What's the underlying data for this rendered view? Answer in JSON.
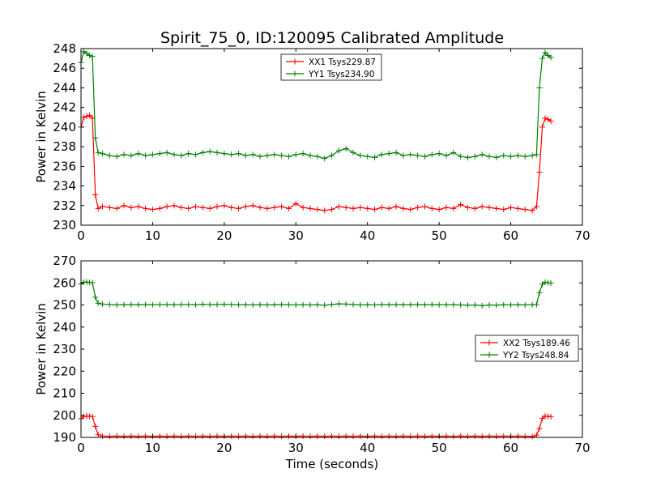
{
  "chart_data": [
    {
      "type": "line",
      "title": "Spirit_75_0, ID:120095 Calibrated Amplitude",
      "xlabel": "",
      "ylabel": "Power in Kelvin",
      "xlim": [
        0,
        70
      ],
      "ylim": [
        230,
        248
      ],
      "xticks": [
        0,
        10,
        20,
        30,
        40,
        50,
        60,
        70
      ],
      "yticks": [
        230,
        232,
        234,
        236,
        238,
        240,
        242,
        244,
        246,
        248
      ],
      "legend_position": "top-center",
      "grid": false,
      "marker": "+",
      "series": [
        {
          "name": "XX1 Tsys229.87",
          "color": "#ff0000",
          "x": [
            0,
            0.4,
            0.8,
            1.2,
            1.6,
            2.0,
            2.4,
            3,
            4,
            5,
            6,
            7,
            8,
            9,
            10,
            11,
            12,
            13,
            14,
            15,
            16,
            17,
            18,
            19,
            20,
            21,
            22,
            23,
            24,
            25,
            26,
            27,
            28,
            29,
            30,
            31,
            32,
            33,
            34,
            35,
            36,
            37,
            38,
            39,
            40,
            41,
            42,
            43,
            44,
            45,
            46,
            47,
            48,
            49,
            50,
            51,
            52,
            53,
            54,
            55,
            56,
            57,
            58,
            59,
            60,
            61,
            62,
            63,
            63.6,
            64.0,
            64.4,
            64.8,
            65.2,
            65.6
          ],
          "y": [
            240.0,
            241.0,
            241.1,
            241.2,
            240.9,
            233.1,
            231.7,
            231.9,
            231.8,
            231.7,
            232.0,
            231.8,
            231.9,
            231.7,
            231.6,
            231.7,
            231.9,
            232.0,
            231.8,
            231.7,
            231.9,
            231.8,
            231.7,
            231.9,
            232.0,
            231.8,
            231.7,
            231.9,
            232.0,
            231.8,
            231.7,
            231.8,
            231.9,
            231.7,
            232.2,
            231.8,
            231.7,
            231.6,
            231.5,
            231.6,
            231.9,
            231.8,
            231.7,
            231.8,
            231.7,
            231.6,
            231.8,
            231.7,
            231.9,
            231.7,
            231.6,
            231.8,
            231.9,
            231.7,
            231.6,
            231.8,
            231.7,
            232.1,
            231.8,
            231.7,
            231.9,
            231.8,
            231.7,
            231.6,
            231.8,
            231.7,
            231.6,
            231.5,
            231.9,
            235.4,
            240.0,
            240.9,
            240.8,
            240.6
          ]
        },
        {
          "name": "YY1 Tsys234.90",
          "color": "#008000",
          "x": [
            0,
            0.4,
            0.8,
            1.2,
            1.6,
            2.0,
            2.4,
            3,
            4,
            5,
            6,
            7,
            8,
            9,
            10,
            11,
            12,
            13,
            14,
            15,
            16,
            17,
            18,
            19,
            20,
            21,
            22,
            23,
            24,
            25,
            26,
            27,
            28,
            29,
            30,
            31,
            32,
            33,
            34,
            35,
            36,
            37,
            38,
            39,
            40,
            41,
            42,
            43,
            44,
            45,
            46,
            47,
            48,
            49,
            50,
            51,
            52,
            53,
            54,
            55,
            56,
            57,
            58,
            59,
            60,
            61,
            62,
            63,
            63.6,
            64.0,
            64.4,
            64.8,
            65.2,
            65.6
          ],
          "y": [
            246.6,
            247.7,
            247.5,
            247.3,
            247.2,
            238.9,
            237.4,
            237.3,
            237.1,
            237.0,
            237.2,
            237.1,
            237.3,
            237.1,
            237.2,
            237.3,
            237.4,
            237.2,
            237.1,
            237.3,
            237.2,
            237.4,
            237.5,
            237.4,
            237.3,
            237.2,
            237.3,
            237.1,
            237.2,
            237.0,
            237.1,
            237.2,
            237.1,
            237.0,
            237.2,
            237.3,
            237.1,
            237.0,
            236.8,
            237.1,
            237.6,
            237.8,
            237.4,
            237.1,
            237.0,
            236.9,
            237.2,
            237.3,
            237.4,
            237.1,
            237.2,
            237.1,
            237.0,
            237.2,
            237.3,
            237.1,
            237.4,
            237.0,
            236.9,
            237.0,
            237.2,
            237.0,
            236.9,
            237.1,
            237.0,
            237.1,
            237.0,
            237.1,
            237.2,
            244.0,
            247.0,
            247.6,
            247.3,
            247.1
          ]
        }
      ]
    },
    {
      "type": "line",
      "title": "",
      "xlabel": "Time (seconds)",
      "ylabel": "Power in Kelvin",
      "xlim": [
        0,
        70
      ],
      "ylim": [
        190,
        270
      ],
      "xticks": [
        0,
        10,
        20,
        30,
        40,
        50,
        60,
        70
      ],
      "yticks": [
        190,
        200,
        210,
        220,
        230,
        240,
        250,
        260,
        270
      ],
      "legend_position": "center-right",
      "grid": false,
      "marker": "+",
      "series": [
        {
          "name": "XX2 Tsys189.46",
          "color": "#ff0000",
          "x": [
            0,
            0.4,
            0.8,
            1.2,
            1.6,
            2.0,
            2.4,
            3,
            4,
            5,
            6,
            7,
            8,
            9,
            10,
            11,
            12,
            13,
            14,
            15,
            16,
            17,
            18,
            19,
            20,
            21,
            22,
            23,
            24,
            25,
            26,
            27,
            28,
            29,
            30,
            31,
            32,
            33,
            34,
            35,
            36,
            37,
            38,
            39,
            40,
            41,
            42,
            43,
            44,
            45,
            46,
            47,
            48,
            49,
            50,
            51,
            52,
            53,
            54,
            55,
            56,
            57,
            58,
            59,
            60,
            61,
            62,
            63,
            63.6,
            64.0,
            64.4,
            64.8,
            65.2,
            65.6
          ],
          "y": [
            198.5,
            199.5,
            199.7,
            199.6,
            199.5,
            195.0,
            191.2,
            190.6,
            190.5,
            190.6,
            190.5,
            190.6,
            190.5,
            190.6,
            190.5,
            190.6,
            190.5,
            190.6,
            190.5,
            190.6,
            190.5,
            190.6,
            190.5,
            190.6,
            190.5,
            190.6,
            190.5,
            190.6,
            190.5,
            190.6,
            190.5,
            190.6,
            190.5,
            190.6,
            190.5,
            190.6,
            190.5,
            190.6,
            190.5,
            190.6,
            190.5,
            190.6,
            190.5,
            190.6,
            190.5,
            190.6,
            190.5,
            190.6,
            190.5,
            190.6,
            190.5,
            190.6,
            190.5,
            190.6,
            190.5,
            190.6,
            190.5,
            190.6,
            190.5,
            190.6,
            190.5,
            190.6,
            190.5,
            190.6,
            190.5,
            190.6,
            190.5,
            190.4,
            191.0,
            194.0,
            198.6,
            199.7,
            199.5,
            199.4
          ]
        },
        {
          "name": "YY2 Tsys248.84",
          "color": "#008000",
          "x": [
            0,
            0.4,
            0.8,
            1.2,
            1.6,
            2.0,
            2.4,
            3,
            4,
            5,
            6,
            7,
            8,
            9,
            10,
            11,
            12,
            13,
            14,
            15,
            16,
            17,
            18,
            19,
            20,
            21,
            22,
            23,
            24,
            25,
            26,
            27,
            28,
            29,
            30,
            31,
            32,
            33,
            34,
            35,
            36,
            37,
            38,
            39,
            40,
            41,
            42,
            43,
            44,
            45,
            46,
            47,
            48,
            49,
            50,
            51,
            52,
            53,
            54,
            55,
            56,
            57,
            58,
            59,
            60,
            61,
            62,
            63,
            63.6,
            64.0,
            64.4,
            64.8,
            65.2,
            65.6
          ],
          "y": [
            259.5,
            260.3,
            260.4,
            260.2,
            260.1,
            253.5,
            250.8,
            250.4,
            250.2,
            250.0,
            250.1,
            250.2,
            250.1,
            250.2,
            250.1,
            250.2,
            250.2,
            250.1,
            250.2,
            250.2,
            250.1,
            250.3,
            250.2,
            250.2,
            250.3,
            250.2,
            250.1,
            250.1,
            250.0,
            250.1,
            250.0,
            250.1,
            250.2,
            250.1,
            250.0,
            250.1,
            250.0,
            250.1,
            249.9,
            250.2,
            250.5,
            250.4,
            250.2,
            250.0,
            250.1,
            250.0,
            250.2,
            250.1,
            250.2,
            250.1,
            250.1,
            250.2,
            250.1,
            250.2,
            250.1,
            250.1,
            250.1,
            250.0,
            249.9,
            250.0,
            249.7,
            250.0,
            249.9,
            250.1,
            250.0,
            250.1,
            250.0,
            250.1,
            250.2,
            255.5,
            259.4,
            260.3,
            260.1,
            259.9
          ]
        }
      ]
    }
  ]
}
